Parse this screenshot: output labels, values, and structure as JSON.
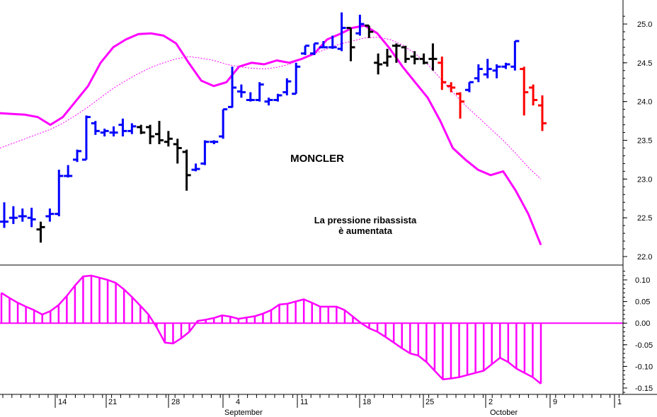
{
  "chart_data": [
    {
      "type": "ohlc",
      "title": "MONCLER",
      "annotation": [
        "La pressione ribassista",
        "è aumentata"
      ],
      "ylim": [
        21.9,
        25.25
      ],
      "y_ticks": [
        "25.0",
        "24.5",
        "24.0",
        "23.5",
        "23.0",
        "22.5",
        "22.0"
      ],
      "colors": {
        "up": "#0000ff",
        "down": "#000000",
        "down_strong": "#ff0000",
        "bands": "#ff00ff",
        "annotation": "#ff00ff"
      },
      "bars": [
        {
          "h": 22.7,
          "l": 22.37,
          "o": 22.45,
          "c": 22.45,
          "color": "up"
        },
        {
          "h": 22.65,
          "l": 22.42,
          "o": 22.5,
          "c": 22.5,
          "color": "up"
        },
        {
          "h": 22.62,
          "l": 22.45,
          "o": 22.52,
          "c": 22.52,
          "color": "up"
        },
        {
          "h": 22.63,
          "l": 22.38,
          "o": 22.5,
          "c": 22.48,
          "color": "up"
        },
        {
          "h": 22.45,
          "l": 22.18,
          "o": 22.35,
          "c": 22.38,
          "color": "down"
        },
        {
          "h": 22.62,
          "l": 22.45,
          "o": 22.52,
          "c": 22.55,
          "color": "up"
        },
        {
          "h": 23.12,
          "l": 22.52,
          "o": 22.55,
          "c": 23.04,
          "color": "up"
        },
        {
          "h": 23.18,
          "l": 23.02,
          "o": 23.04,
          "c": 23.04,
          "color": "up"
        },
        {
          "h": 23.38,
          "l": 23.22,
          "o": 23.25,
          "c": 23.36,
          "color": "up"
        },
        {
          "h": 23.82,
          "l": 23.25,
          "o": 23.25,
          "c": 23.8,
          "color": "up"
        },
        {
          "h": 23.75,
          "l": 23.57,
          "o": 23.72,
          "c": 23.62,
          "color": "up"
        },
        {
          "h": 23.65,
          "l": 23.55,
          "o": 23.6,
          "c": 23.62,
          "color": "up"
        },
        {
          "h": 23.68,
          "l": 23.55,
          "o": 23.6,
          "c": 23.6,
          "color": "up"
        },
        {
          "h": 23.78,
          "l": 23.55,
          "o": 23.7,
          "c": 23.62,
          "color": "up"
        },
        {
          "h": 23.72,
          "l": 23.58,
          "o": 23.62,
          "c": 23.68,
          "color": "up"
        },
        {
          "h": 23.7,
          "l": 23.58,
          "o": 23.67,
          "c": 23.6,
          "color": "down"
        },
        {
          "h": 23.7,
          "l": 23.45,
          "o": 23.67,
          "c": 23.55,
          "color": "down"
        },
        {
          "h": 23.75,
          "l": 23.45,
          "o": 23.58,
          "c": 23.5,
          "color": "down"
        },
        {
          "h": 23.62,
          "l": 23.42,
          "o": 23.48,
          "c": 23.52,
          "color": "down"
        },
        {
          "h": 23.52,
          "l": 23.2,
          "o": 23.45,
          "c": 23.4,
          "color": "down"
        },
        {
          "h": 23.38,
          "l": 22.85,
          "o": 23.35,
          "c": 23.05,
          "color": "down"
        },
        {
          "h": 23.2,
          "l": 23.1,
          "o": 23.12,
          "c": 23.13,
          "color": "up"
        },
        {
          "h": 23.5,
          "l": 23.18,
          "o": 23.2,
          "c": 23.48,
          "color": "up"
        },
        {
          "h": 23.5,
          "l": 23.45,
          "o": 23.48,
          "c": 23.48,
          "color": "up"
        },
        {
          "h": 23.9,
          "l": 23.52,
          "o": 23.55,
          "c": 23.9,
          "color": "up"
        },
        {
          "h": 24.45,
          "l": 23.92,
          "o": 23.93,
          "c": 24.18,
          "color": "up"
        },
        {
          "h": 24.22,
          "l": 24.05,
          "o": 24.13,
          "c": 24.12,
          "color": "up"
        },
        {
          "h": 24.12,
          "l": 24.0,
          "o": 24.02,
          "c": 24.02,
          "color": "up"
        },
        {
          "h": 24.25,
          "l": 24.0,
          "o": 24.02,
          "c": 24.22,
          "color": "up"
        },
        {
          "h": 24.05,
          "l": 23.95,
          "o": 24.0,
          "c": 24.02,
          "color": "up"
        },
        {
          "h": 24.1,
          "l": 24.0,
          "o": 24.02,
          "c": 24.08,
          "color": "up"
        },
        {
          "h": 24.3,
          "l": 24.08,
          "o": 24.12,
          "c": 24.26,
          "color": "up"
        },
        {
          "h": 24.5,
          "l": 24.1,
          "o": 24.1,
          "c": 24.45,
          "color": "up"
        },
        {
          "h": 24.72,
          "l": 24.6,
          "o": 24.62,
          "c": 24.72,
          "color": "up"
        },
        {
          "h": 24.75,
          "l": 24.6,
          "o": 24.62,
          "c": 24.75,
          "color": "up"
        },
        {
          "h": 24.78,
          "l": 24.7,
          "o": 24.7,
          "c": 24.7,
          "color": "up"
        },
        {
          "h": 24.85,
          "l": 24.68,
          "o": 24.7,
          "c": 24.7,
          "color": "up"
        },
        {
          "h": 25.15,
          "l": 24.65,
          "o": 24.68,
          "c": 24.95,
          "color": "up"
        },
        {
          "h": 24.95,
          "l": 24.52,
          "o": 24.95,
          "c": 24.7,
          "color": "down"
        },
        {
          "h": 25.12,
          "l": 24.85,
          "o": 24.88,
          "c": 25.0,
          "color": "up"
        },
        {
          "h": 24.98,
          "l": 24.82,
          "o": 24.98,
          "c": 24.9,
          "color": "down"
        },
        {
          "h": 24.62,
          "l": 24.35,
          "o": 24.5,
          "c": 24.48,
          "color": "down"
        },
        {
          "h": 24.68,
          "l": 24.45,
          "o": 24.5,
          "c": 24.58,
          "color": "down"
        },
        {
          "h": 24.75,
          "l": 24.5,
          "o": 24.72,
          "c": 24.72,
          "color": "down"
        },
        {
          "h": 24.72,
          "l": 24.5,
          "o": 24.7,
          "c": 24.55,
          "color": "down"
        },
        {
          "h": 24.65,
          "l": 24.48,
          "o": 24.58,
          "c": 24.55,
          "color": "down"
        },
        {
          "h": 24.62,
          "l": 24.48,
          "o": 24.55,
          "c": 24.5,
          "color": "down"
        },
        {
          "h": 24.75,
          "l": 24.4,
          "o": 24.55,
          "c": 24.55,
          "color": "down"
        },
        {
          "h": 24.58,
          "l": 24.15,
          "o": 24.5,
          "c": 24.25,
          "color": "down_strong"
        },
        {
          "h": 24.25,
          "l": 24.12,
          "o": 24.2,
          "c": 24.18,
          "color": "down_strong"
        },
        {
          "h": 24.12,
          "l": 23.78,
          "o": 24.1,
          "c": 24.0,
          "color": "down_strong"
        },
        {
          "h": 24.25,
          "l": 24.12,
          "o": 24.15,
          "c": 24.25,
          "color": "up"
        },
        {
          "h": 24.48,
          "l": 24.25,
          "o": 24.3,
          "c": 24.42,
          "color": "up"
        },
        {
          "h": 24.55,
          "l": 24.3,
          "o": 24.35,
          "c": 24.42,
          "color": "up"
        },
        {
          "h": 24.48,
          "l": 24.3,
          "o": 24.4,
          "c": 24.45,
          "color": "up"
        },
        {
          "h": 24.5,
          "l": 24.42,
          "o": 24.45,
          "c": 24.48,
          "color": "up"
        },
        {
          "h": 24.78,
          "l": 24.4,
          "o": 24.45,
          "c": 24.78,
          "color": "up"
        },
        {
          "h": 24.45,
          "l": 23.82,
          "o": 24.42,
          "c": 24.12,
          "color": "down_strong"
        },
        {
          "h": 24.22,
          "l": 23.95,
          "o": 24.18,
          "c": 24.02,
          "color": "down_strong"
        },
        {
          "h": 24.08,
          "l": 23.62,
          "o": 23.95,
          "c": 23.72,
          "color": "down_strong"
        }
      ],
      "upper_band": [
        23.85,
        23.84,
        23.83,
        23.8,
        23.7,
        23.8,
        24.0,
        24.2,
        24.5,
        24.7,
        24.8,
        24.87,
        24.88,
        24.85,
        24.75,
        24.5,
        24.27,
        24.2,
        24.25,
        24.45,
        24.5,
        24.48,
        24.53,
        24.5,
        24.55,
        24.62,
        24.8,
        24.87,
        24.95,
        24.98,
        24.88,
        24.68,
        24.45,
        24.25,
        24.05,
        23.75,
        23.4,
        23.25,
        23.12,
        23.05,
        23.1,
        22.85,
        22.55,
        22.15
      ],
      "midline": [
        23.4,
        23.46,
        23.52,
        23.58,
        23.64,
        23.72,
        23.82,
        23.93,
        24.05,
        24.17,
        24.27,
        24.36,
        24.44,
        24.5,
        24.55,
        24.58,
        24.56,
        24.53,
        24.48,
        24.45,
        24.43,
        24.42,
        24.44,
        24.48,
        24.55,
        24.62,
        24.68,
        24.74,
        24.78,
        24.82,
        24.83,
        24.8,
        24.73,
        24.62,
        24.48,
        24.3,
        24.12,
        23.95,
        23.8,
        23.65,
        23.5,
        23.33,
        23.15,
        23.0
      ]
    },
    {
      "type": "histogram",
      "ylim": [
        -0.165,
        0.125
      ],
      "y_ticks": [
        "0.10",
        "0.05",
        "0.00",
        "-0.05",
        "-0.10",
        "-0.15"
      ],
      "values": [
        0.07,
        0.058,
        0.047,
        0.038,
        0.03,
        0.02,
        0.028,
        0.042,
        0.063,
        0.087,
        0.108,
        0.11,
        0.105,
        0.1,
        0.093,
        0.078,
        0.06,
        0.04,
        0.02,
        -0.01,
        -0.045,
        -0.047,
        -0.035,
        -0.02,
        0.005,
        0.008,
        0.012,
        0.018,
        0.015,
        0.01,
        0.013,
        0.016,
        0.022,
        0.03,
        0.043,
        0.045,
        0.05,
        0.055,
        0.047,
        0.038,
        0.038,
        0.038,
        0.03,
        0.015,
        0.0,
        -0.012,
        -0.02,
        -0.032,
        -0.045,
        -0.058,
        -0.07,
        -0.075,
        -0.09,
        -0.11,
        -0.13,
        -0.128,
        -0.125,
        -0.12,
        -0.115,
        -0.11,
        -0.095,
        -0.08,
        -0.09,
        -0.105,
        -0.115,
        -0.125,
        -0.14
      ]
    }
  ],
  "x_axis": {
    "day_labels": [
      "14",
      "21",
      "28",
      "4",
      "11",
      "18",
      "25",
      "2",
      "9",
      "1"
    ],
    "month_labels": [
      "September",
      "October"
    ]
  }
}
